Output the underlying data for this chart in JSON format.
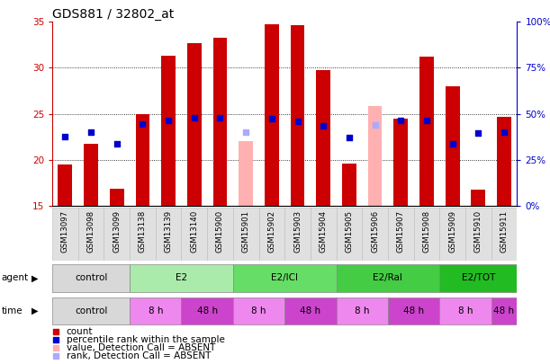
{
  "title": "GDS881 / 32802_at",
  "samples": [
    "GSM13097",
    "GSM13098",
    "GSM13099",
    "GSM13138",
    "GSM13139",
    "GSM13140",
    "GSM15900",
    "GSM15901",
    "GSM15902",
    "GSM15903",
    "GSM15904",
    "GSM15905",
    "GSM15906",
    "GSM15907",
    "GSM15908",
    "GSM15909",
    "GSM15910",
    "GSM15911"
  ],
  "bar_values": [
    19.5,
    21.7,
    16.8,
    25.0,
    31.3,
    32.7,
    33.3,
    22.0,
    34.7,
    34.6,
    29.7,
    19.6,
    25.8,
    24.5,
    31.2,
    28.0,
    16.7,
    24.7
  ],
  "dot_values": [
    22.5,
    23.0,
    21.7,
    23.9,
    24.3,
    24.6,
    24.6,
    23.0,
    24.5,
    24.2,
    23.7,
    22.4,
    23.8,
    24.3,
    24.3,
    21.7,
    22.9,
    23.0
  ],
  "absent_flags": [
    false,
    false,
    false,
    false,
    false,
    false,
    false,
    true,
    false,
    false,
    false,
    false,
    true,
    false,
    false,
    false,
    false,
    false
  ],
  "ylim_left": [
    15,
    35
  ],
  "ylim_right": [
    0,
    100
  ],
  "yticks_left": [
    15,
    20,
    25,
    30,
    35
  ],
  "ytick_labels_left": [
    "15",
    "20",
    "25",
    "30",
    "35"
  ],
  "yticks_right": [
    0,
    25,
    50,
    75,
    100
  ],
  "ytick_labels_right": [
    "0%",
    "25%",
    "50%",
    "75%",
    "100%"
  ],
  "gridlines": [
    20,
    25,
    30
  ],
  "agent_groups": [
    {
      "label": "control",
      "start": 0,
      "end": 3,
      "color": "#d8d8d8"
    },
    {
      "label": "E2",
      "start": 3,
      "end": 7,
      "color": "#aaeaaa"
    },
    {
      "label": "E2/ICI",
      "start": 7,
      "end": 11,
      "color": "#66dd66"
    },
    {
      "label": "E2/Ral",
      "start": 11,
      "end": 15,
      "color": "#44cc44"
    },
    {
      "label": "E2/TOT",
      "start": 15,
      "end": 18,
      "color": "#22bb22"
    }
  ],
  "time_groups": [
    {
      "label": "control",
      "start": 0,
      "end": 3,
      "color": "#d8d8d8"
    },
    {
      "label": "8 h",
      "start": 3,
      "end": 5,
      "color": "#ee88ee"
    },
    {
      "label": "48 h",
      "start": 5,
      "end": 7,
      "color": "#cc44cc"
    },
    {
      "label": "8 h",
      "start": 7,
      "end": 9,
      "color": "#ee88ee"
    },
    {
      "label": "48 h",
      "start": 9,
      "end": 11,
      "color": "#cc44cc"
    },
    {
      "label": "8 h",
      "start": 11,
      "end": 13,
      "color": "#ee88ee"
    },
    {
      "label": "48 h",
      "start": 13,
      "end": 15,
      "color": "#cc44cc"
    },
    {
      "label": "8 h",
      "start": 15,
      "end": 17,
      "color": "#ee88ee"
    },
    {
      "label": "48 h",
      "start": 17,
      "end": 18,
      "color": "#cc44cc"
    }
  ],
  "bar_color": "#cc0000",
  "dot_color": "#0000cc",
  "absent_bar_color": "#ffb0b0",
  "absent_dot_color": "#aaaaff",
  "bar_width": 0.55,
  "bg_color": "#ffffff",
  "left_axis_color": "#cc0000",
  "right_axis_color": "#0000cc",
  "legend_items": [
    {
      "color": "#cc0000",
      "label": "count"
    },
    {
      "color": "#0000cc",
      "label": "percentile rank within the sample"
    },
    {
      "color": "#ffb0b0",
      "label": "value, Detection Call = ABSENT"
    },
    {
      "color": "#aaaaff",
      "label": "rank, Detection Call = ABSENT"
    }
  ]
}
